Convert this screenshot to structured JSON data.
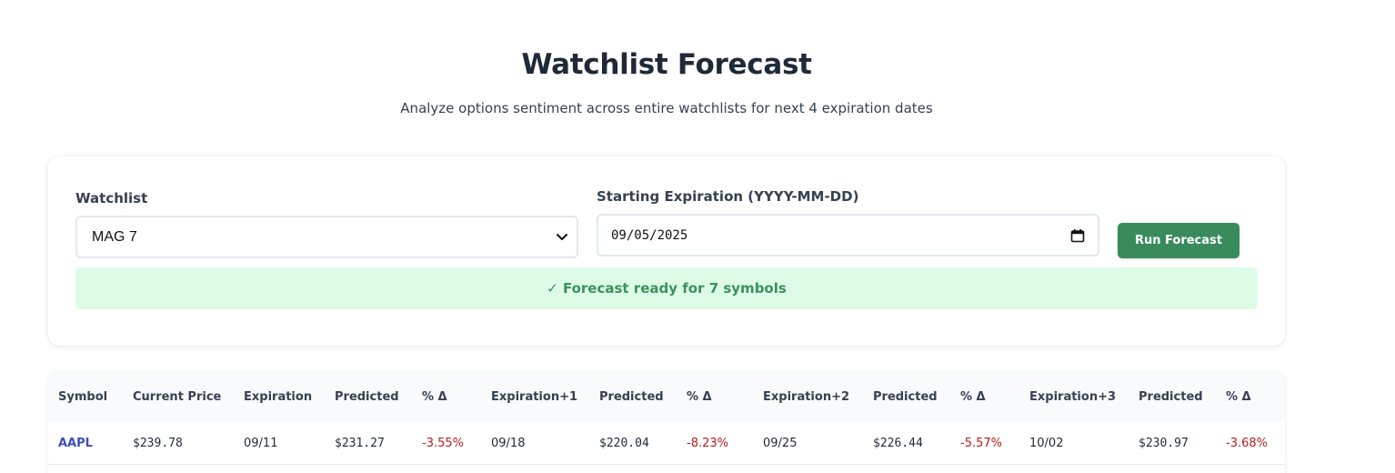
{
  "header": {
    "title": "Watchlist Forecast",
    "subtitle": "Analyze options sentiment across entire watchlists for next 4 expiration dates"
  },
  "form": {
    "watchlist_label": "Watchlist",
    "watchlist_value": "MAG 7",
    "expiration_label": "Starting Expiration (YYYY-MM-DD)",
    "expiration_value": "09/05/2025",
    "run_button_label": "Run Forecast",
    "status_message": "✓ Forecast ready for 7 symbols"
  },
  "table": {
    "columns": [
      "Symbol",
      "Current Price",
      "Expiration",
      "Predicted",
      "% Δ",
      "Expiration+1",
      "Predicted",
      "% Δ",
      "Expiration+2",
      "Predicted",
      "% Δ",
      "Expiration+3",
      "Predicted",
      "% Δ"
    ],
    "rows": [
      [
        "AAPL",
        "$239.78",
        "09/11",
        "$231.27",
        "-3.55%",
        "09/18",
        "$220.04",
        "-8.23%",
        "09/25",
        "$226.44",
        "-5.57%",
        "10/02",
        "$230.97",
        "-3.68%"
      ]
    ]
  },
  "colors": {
    "accent_green": "#3a8b5c",
    "status_bg": "#dcfce7",
    "negative": "#b91c1c",
    "symbol_link": "#3b4fb8"
  },
  "icons": {
    "select_chevron": "chevron-down-icon",
    "date_picker": "calendar-icon"
  }
}
